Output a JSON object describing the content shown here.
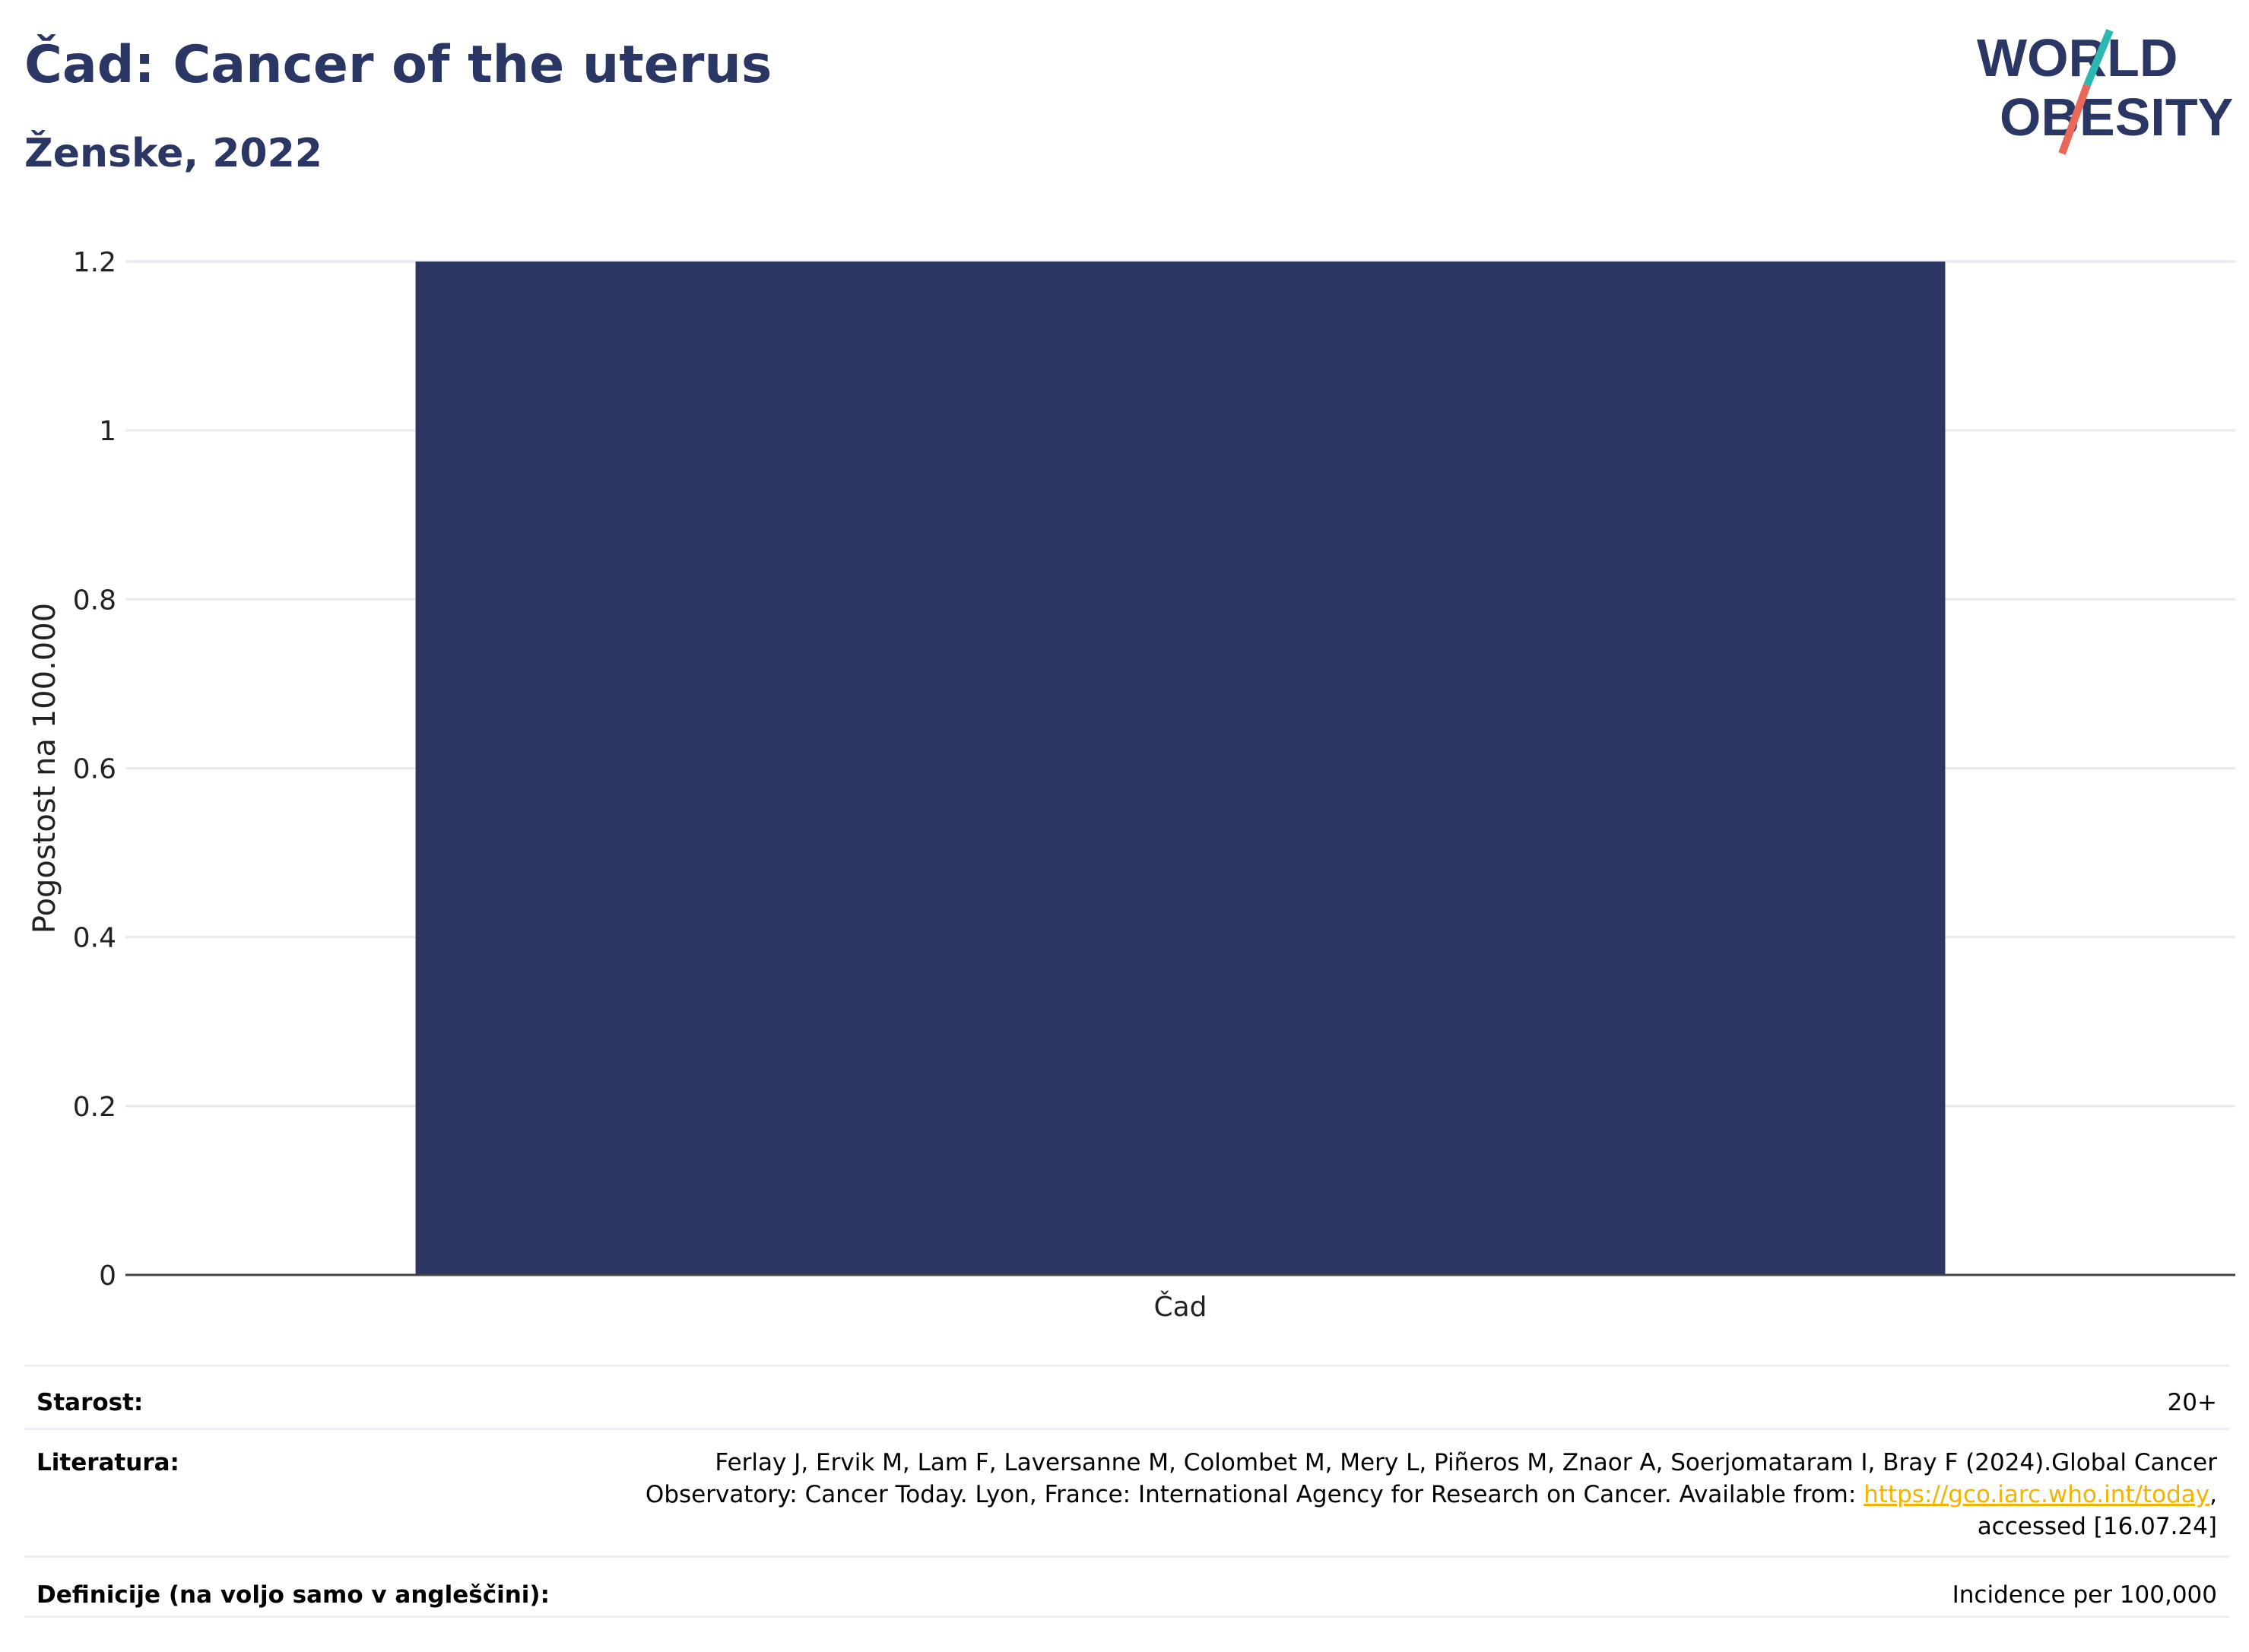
{
  "header": {
    "title": "Čad: Cancer of the uterus",
    "subtitle": "Ženske, 2022"
  },
  "logo": {
    "line1": "WORLD",
    "line2": "OBESITY",
    "colors": {
      "text": "#2a3664",
      "slash_top": "#2ab8b0",
      "slash_bottom": "#e8685a"
    }
  },
  "chart_data": {
    "type": "bar",
    "categories": [
      "Čad"
    ],
    "values": [
      1.2
    ],
    "title": "Čad: Cancer of the uterus",
    "xlabel": "",
    "ylabel": "Pogostost na 100.000",
    "ylim": [
      0,
      1.2
    ],
    "yticks": [
      0,
      0.2,
      0.4,
      0.6,
      0.8,
      1,
      1.2
    ],
    "ytick_labels": [
      "0",
      "0.2",
      "0.4",
      "0.6",
      "0.8",
      "1",
      "1.2"
    ],
    "grid": true,
    "legend": "none",
    "bar_color": "#2b3663"
  },
  "meta": {
    "age_label": "Starost:",
    "age_value": "20+",
    "lit_label": "Literatura:",
    "lit_line1": "Ferlay J, Ervik M, Lam F, Laversanne M, Colombet M, Mery L, Piñeros M, Znaor A, Soerjomataram I, Bray F (2024).Global Cancer",
    "lit_line2_pre": "Observatory: Cancer Today. Lyon, France: International Agency for Research on Cancer. Available from: ",
    "lit_link": "https://gco.iarc.who.int/today",
    "lit_line2_post": ",",
    "lit_line3": "accessed [16.07.24]",
    "def_label": "Definicije (na voljo samo v angleščini):",
    "def_value": "Incidence per 100,000"
  }
}
